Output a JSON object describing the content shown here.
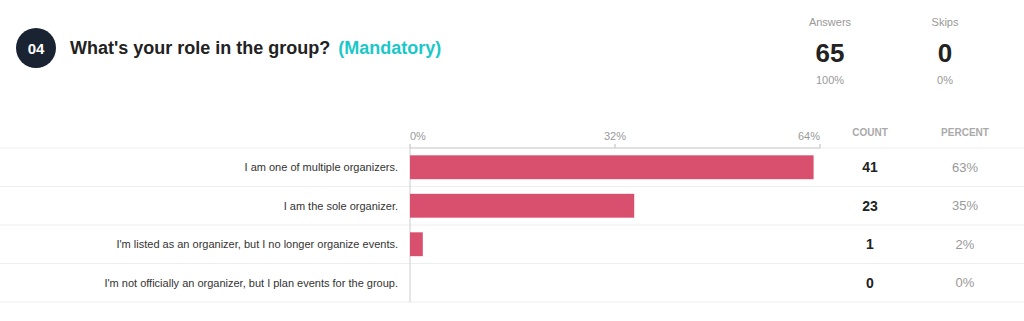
{
  "chart_data": {
    "type": "bar",
    "orientation": "horizontal",
    "title": "What's your role in the group?",
    "subtitle": "(Mandatory)",
    "annotations": [
      "04",
      "Answers",
      "65",
      "100%",
      "Skips",
      "0",
      "0%",
      "COUNT",
      "PERCENT"
    ],
    "categories": [
      "I am one of multiple organizers.",
      "I am the sole organizer.",
      "I'm listed as an organizer, but I no longer organize events.",
      "I'm not officially an organizer, but I plan events for the group."
    ],
    "values": [
      63,
      35,
      2,
      0
    ],
    "value_labels": [
      "63%",
      "35%",
      "2%",
      "0%"
    ],
    "counts": [
      41,
      23,
      1,
      0
    ],
    "color": "#d94f6e",
    "xlim": [
      0,
      64
    ],
    "xticks": [
      {
        "value": 0,
        "label": "0%"
      },
      {
        "value": 32,
        "label": "32%"
      },
      {
        "value": 64,
        "label": "64%"
      }
    ],
    "grid": false,
    "data_labels": true
  }
}
